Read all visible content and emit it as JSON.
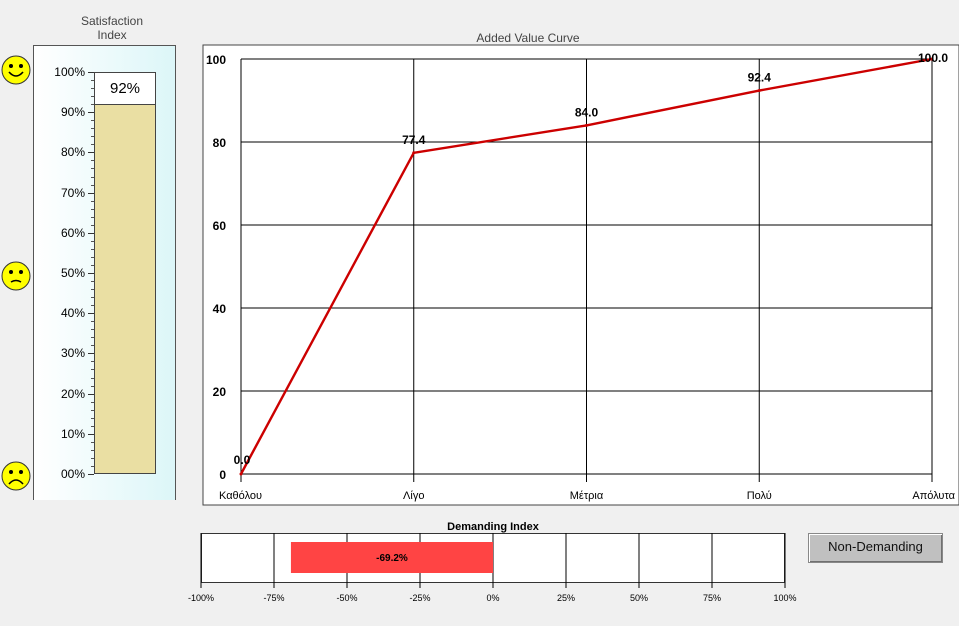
{
  "satisfaction": {
    "title_line1": "Satisfaction",
    "title_line2": "Index",
    "value": 92,
    "value_label": "92%",
    "ticks": [
      "100%",
      "90%",
      "80%",
      "70%",
      "60%",
      "50%",
      "40%",
      "30%",
      "20%",
      "10%",
      "00%"
    ],
    "faces": [
      "happy-face-icon",
      "neutral-face-icon",
      "sad-face-icon"
    ],
    "fill_color": "#eadfa3",
    "panel_color": "#dcf6f8"
  },
  "chart_data": [
    {
      "type": "line",
      "title": "Added Value Curve",
      "categories": [
        "Καθόλου",
        "Λίγο",
        "Μέτρια",
        "Πολύ",
        "Απόλυτα"
      ],
      "series": [
        {
          "values": [
            0.0,
            77.4,
            84.0,
            92.4,
            100.0
          ]
        }
      ],
      "data_labels": [
        "0.0",
        "77.4",
        "84.0",
        "92.4",
        "100.0"
      ],
      "yticks": [
        "100",
        "80",
        "60",
        "40",
        "20",
        "0"
      ],
      "ylim": [
        0,
        100
      ],
      "grid": true,
      "line_color": "#cc0000"
    },
    {
      "type": "bar",
      "title": "Demanding Index",
      "values": [
        -69.2
      ],
      "value_label": "-69.2%",
      "xticks": [
        "-100%",
        "-75%",
        "-50%",
        "-25%",
        "0%",
        "25%",
        "50%",
        "75%",
        "100%"
      ],
      "xlim": [
        -100,
        100
      ],
      "bar_color": "#ff4444"
    }
  ],
  "status_button": {
    "label": "Non-Demanding"
  }
}
